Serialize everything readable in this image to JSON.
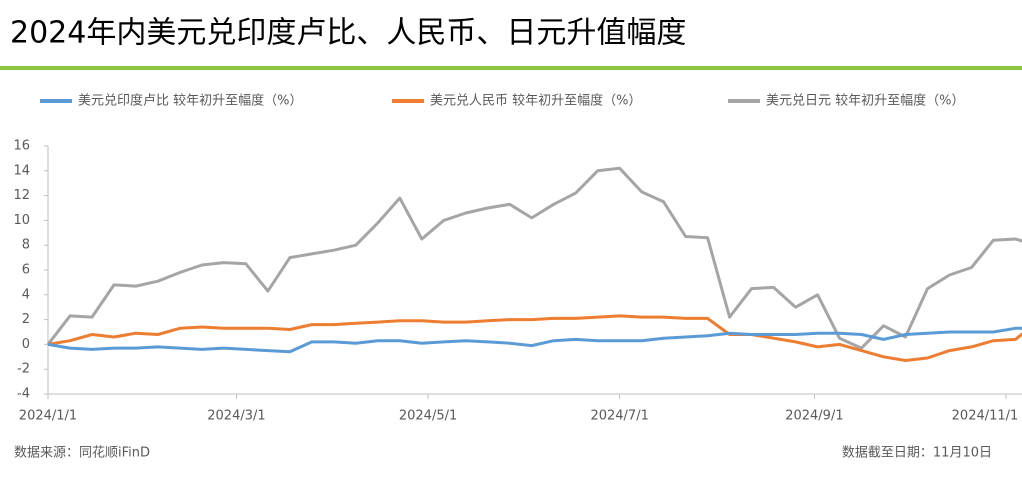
{
  "chart_data": {
    "type": "line",
    "title": "2024年内美元兑印度卢比、人民币、日元升值幅度",
    "source": "数据来源：同花顺iFinD",
    "data_date": "数据截至日期：11月10日",
    "x": [
      "2024/1/1",
      "2024/1/8",
      "2024/1/15",
      "2024/1/22",
      "2024/1/29",
      "2024/2/5",
      "2024/2/12",
      "2024/2/19",
      "2024/2/26",
      "2024/3/4",
      "2024/3/11",
      "2024/3/18",
      "2024/3/25",
      "2024/4/1",
      "2024/4/8",
      "2024/4/15",
      "2024/4/22",
      "2024/4/29",
      "2024/5/6",
      "2024/5/13",
      "2024/5/20",
      "2024/5/27",
      "2024/6/3",
      "2024/6/10",
      "2024/6/17",
      "2024/6/24",
      "2024/7/1",
      "2024/7/8",
      "2024/7/15",
      "2024/7/22",
      "2024/7/29",
      "2024/8/5",
      "2024/8/12",
      "2024/8/19",
      "2024/8/26",
      "2024/9/2",
      "2024/9/9",
      "2024/9/16",
      "2024/9/23",
      "2024/9/30",
      "2024/10/7",
      "2024/10/14",
      "2024/10/21",
      "2024/10/28",
      "2024/11/4",
      "2024/11/8"
    ],
    "series": [
      {
        "name": "美元兑印度卢比  较年初升至幅度（%）",
        "color": "#5b9bd5",
        "values": [
          0,
          -0.3,
          -0.4,
          -0.3,
          -0.3,
          -0.2,
          -0.3,
          -0.4,
          -0.3,
          -0.4,
          -0.5,
          -0.6,
          0.2,
          0.2,
          0.1,
          0.3,
          0.3,
          0.1,
          0.2,
          0.3,
          0.2,
          0.1,
          -0.1,
          0.3,
          0.4,
          0.3,
          0.3,
          0.3,
          0.5,
          0.6,
          0.7,
          0.9,
          0.8,
          0.8,
          0.8,
          0.9,
          0.9,
          0.8,
          0.4,
          0.8,
          0.9,
          1.0,
          1.0,
          1.0,
          1.3,
          1.3
        ]
      },
      {
        "name": "美元兑人民币  较年初升至幅度（%）",
        "color": "#ed7d31",
        "values": [
          0,
          0.3,
          0.8,
          0.6,
          0.9,
          0.8,
          1.3,
          1.4,
          1.3,
          1.3,
          1.3,
          1.2,
          1.6,
          1.6,
          1.7,
          1.8,
          1.9,
          1.9,
          1.8,
          1.8,
          1.9,
          2.0,
          2.0,
          2.1,
          2.1,
          2.2,
          2.3,
          2.2,
          2.2,
          2.1,
          2.1,
          0.8,
          0.8,
          0.5,
          0.2,
          -0.2,
          0.0,
          -0.5,
          -1.0,
          -1.3,
          -1.1,
          -0.5,
          -0.2,
          0.3,
          0.4,
          1.2
        ]
      },
      {
        "name": "美元兑日元  较年初升至幅度（%）",
        "color": "#a5a5a5",
        "values": [
          0,
          2.3,
          2.2,
          4.8,
          4.7,
          5.1,
          5.8,
          6.4,
          6.6,
          6.5,
          4.3,
          7.0,
          7.3,
          7.6,
          8.0,
          9.8,
          11.8,
          8.5,
          10.0,
          10.6,
          11.0,
          11.3,
          10.2,
          11.3,
          12.2,
          14.0,
          14.2,
          12.3,
          11.5,
          8.7,
          8.6,
          2.2,
          4.5,
          4.6,
          3.0,
          4.0,
          0.5,
          -0.3,
          1.5,
          0.6,
          4.5,
          5.6,
          6.2,
          8.4,
          8.5,
          8.2
        ]
      }
    ],
    "xlim": [
      "2024/1/1",
      "2024/11/8"
    ],
    "xticks": [
      "2024/1/1",
      "2024/3/1",
      "2024/5/1",
      "2024/7/1",
      "2024/9/1",
      "2024/11/1"
    ],
    "ylim": [
      -4,
      16
    ],
    "yticks": [
      -4,
      -2,
      0,
      2,
      4,
      6,
      8,
      10,
      12,
      14,
      16
    ]
  }
}
